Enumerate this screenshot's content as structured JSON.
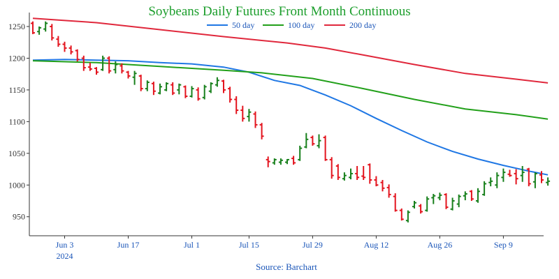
{
  "chart_data": {
    "type": "ohlc",
    "title": "Soybeans Daily Futures Front Month Continuous",
    "source": "Source: Barchart",
    "y_ticks": [
      950,
      1000,
      1050,
      1100,
      1150,
      1200,
      1250
    ],
    "ylim": [
      920,
      1272
    ],
    "x_ticks": [
      {
        "label": "Jun 3",
        "sublabel": "2024",
        "bar_index": 5
      },
      {
        "label": "Jun 17",
        "bar_index": 15
      },
      {
        "label": "Jul 1",
        "bar_index": 25
      },
      {
        "label": "Jul 15",
        "bar_index": 34
      },
      {
        "label": "Jul 29",
        "bar_index": 44
      },
      {
        "label": "Aug 12",
        "bar_index": 54
      },
      {
        "label": "Aug 26",
        "bar_index": 64
      },
      {
        "label": "Sep 9",
        "bar_index": 74
      }
    ],
    "bar_count": 82,
    "ohlc": [
      [
        1255,
        1258,
        1238,
        1240
      ],
      [
        1242,
        1250,
        1237,
        1248
      ],
      [
        1246,
        1258,
        1242,
        1255
      ],
      [
        1250,
        1254,
        1228,
        1232
      ],
      [
        1230,
        1235,
        1218,
        1222
      ],
      [
        1222,
        1226,
        1210,
        1216
      ],
      [
        1216,
        1220,
        1206,
        1210
      ],
      [
        1212,
        1214,
        1195,
        1198
      ],
      [
        1200,
        1204,
        1180,
        1185
      ],
      [
        1186,
        1193,
        1180,
        1183
      ],
      [
        1184,
        1186,
        1174,
        1178
      ],
      [
        1182,
        1204,
        1180,
        1200
      ],
      [
        1200,
        1203,
        1176,
        1180
      ],
      [
        1182,
        1195,
        1176,
        1190
      ],
      [
        1188,
        1192,
        1176,
        1180
      ],
      [
        1178,
        1180,
        1168,
        1172
      ],
      [
        1170,
        1180,
        1158,
        1176
      ],
      [
        1172,
        1174,
        1148,
        1152
      ],
      [
        1152,
        1165,
        1148,
        1162
      ],
      [
        1160,
        1163,
        1142,
        1148
      ],
      [
        1145,
        1160,
        1143,
        1155
      ],
      [
        1150,
        1162,
        1148,
        1160
      ],
      [
        1158,
        1162,
        1142,
        1145
      ],
      [
        1150,
        1160,
        1143,
        1158
      ],
      [
        1155,
        1157,
        1137,
        1140
      ],
      [
        1140,
        1156,
        1138,
        1152
      ],
      [
        1150,
        1154,
        1133,
        1136
      ],
      [
        1138,
        1158,
        1135,
        1155
      ],
      [
        1148,
        1162,
        1145,
        1160
      ],
      [
        1158,
        1170,
        1155,
        1165
      ],
      [
        1164,
        1166,
        1145,
        1150
      ],
      [
        1152,
        1155,
        1130,
        1135
      ],
      [
        1135,
        1140,
        1112,
        1118
      ],
      [
        1118,
        1125,
        1100,
        1105
      ],
      [
        1108,
        1120,
        1100,
        1115
      ],
      [
        1112,
        1116,
        1090,
        1095
      ],
      [
        1095,
        1098,
        1072,
        1077
      ],
      [
        1040,
        1045,
        1028,
        1037
      ],
      [
        1035,
        1042,
        1032,
        1040
      ],
      [
        1036,
        1042,
        1032,
        1039
      ],
      [
        1036,
        1041,
        1033,
        1040
      ],
      [
        1042,
        1046,
        1032,
        1035
      ],
      [
        1040,
        1062,
        1038,
        1058
      ],
      [
        1060,
        1082,
        1058,
        1072
      ],
      [
        1075,
        1078,
        1062,
        1065
      ],
      [
        1062,
        1080,
        1058,
        1070
      ],
      [
        1075,
        1078,
        1038,
        1040
      ],
      [
        1040,
        1044,
        1010,
        1015
      ],
      [
        1030,
        1033,
        1008,
        1012
      ],
      [
        1010,
        1020,
        1007,
        1015
      ],
      [
        1012,
        1026,
        1009,
        1018
      ],
      [
        1018,
        1030,
        1008,
        1012
      ],
      [
        1014,
        1030,
        1008,
        1012
      ],
      [
        1032,
        1034,
        1002,
        1008
      ],
      [
        1008,
        1014,
        998,
        1000
      ],
      [
        1004,
        1008,
        990,
        995
      ],
      [
        996,
        1001,
        980,
        985
      ],
      [
        982,
        987,
        958,
        960
      ],
      [
        960,
        963,
        944,
        946
      ],
      [
        944,
        960,
        941,
        957
      ],
      [
        966,
        975,
        963,
        972
      ],
      [
        967,
        970,
        955,
        958
      ],
      [
        960,
        982,
        958,
        978
      ],
      [
        980,
        986,
        970,
        983
      ],
      [
        980,
        988,
        976,
        984
      ],
      [
        985,
        987,
        962,
        965
      ],
      [
        962,
        980,
        960,
        975
      ],
      [
        970,
        985,
        965,
        982
      ],
      [
        983,
        990,
        976,
        986
      ],
      [
        990,
        992,
        975,
        978
      ],
      [
        975,
        995,
        972,
        990
      ],
      [
        985,
        1006,
        983,
        1002
      ],
      [
        1004,
        1012,
        998,
        1006
      ],
      [
        1000,
        1020,
        995,
        1015
      ],
      [
        1012,
        1026,
        1005,
        1020
      ],
      [
        1017,
        1024,
        1013,
        1015
      ],
      [
        1018,
        1025,
        1001,
        1010
      ],
      [
        1015,
        1030,
        1005,
        1020
      ],
      [
        1025,
        1027,
        998,
        1002
      ],
      [
        1005,
        1020,
        995,
        1018
      ],
      [
        1016,
        1022,
        1003,
        1008
      ],
      [
        1004,
        1012,
        999,
        1006
      ]
    ],
    "series": [
      {
        "name": "50 day",
        "color": "#1f77e4",
        "values": [
          [
            0,
            1197
          ],
          [
            5,
            1198
          ],
          [
            10,
            1197
          ],
          [
            15,
            1196
          ],
          [
            20,
            1193
          ],
          [
            25,
            1191
          ],
          [
            30,
            1186
          ],
          [
            34,
            1178
          ],
          [
            38,
            1165
          ],
          [
            42,
            1157
          ],
          [
            46,
            1142
          ],
          [
            50,
            1125
          ],
          [
            54,
            1105
          ],
          [
            58,
            1086
          ],
          [
            62,
            1068
          ],
          [
            66,
            1053
          ],
          [
            70,
            1041
          ],
          [
            74,
            1031
          ],
          [
            78,
            1022
          ],
          [
            81,
            1016
          ]
        ]
      },
      {
        "name": "100 day",
        "color": "#22a01a",
        "values": [
          [
            0,
            1196
          ],
          [
            10,
            1193
          ],
          [
            20,
            1187
          ],
          [
            30,
            1181
          ],
          [
            36,
            1177
          ],
          [
            44,
            1168
          ],
          [
            52,
            1152
          ],
          [
            60,
            1135
          ],
          [
            68,
            1120
          ],
          [
            76,
            1111
          ],
          [
            81,
            1104
          ]
        ]
      },
      {
        "name": "200 day",
        "color": "#e0283c",
        "values": [
          [
            0,
            1263
          ],
          [
            10,
            1256
          ],
          [
            20,
            1245
          ],
          [
            30,
            1234
          ],
          [
            40,
            1224
          ],
          [
            46,
            1216
          ],
          [
            52,
            1205
          ],
          [
            60,
            1190
          ],
          [
            68,
            1176
          ],
          [
            76,
            1167
          ],
          [
            81,
            1161
          ]
        ]
      }
    ],
    "up_color": "#18801c",
    "down_color": "#e3141e",
    "title_color": "#1c9e2c",
    "axis_label_color": "#1a55b8"
  }
}
